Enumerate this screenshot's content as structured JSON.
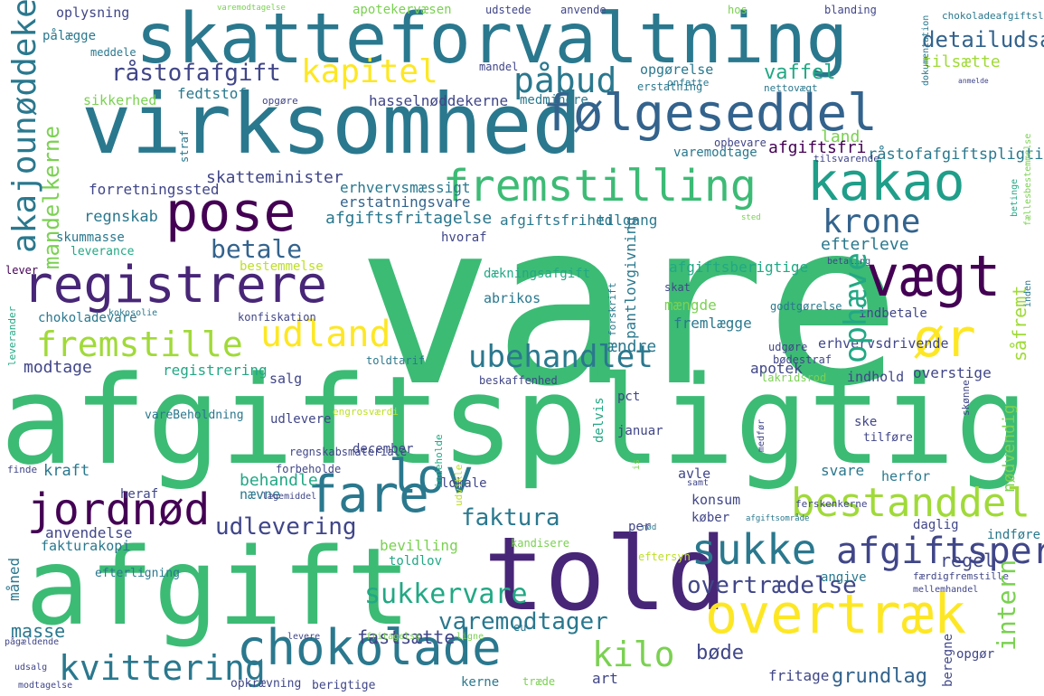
{
  "words": [
    {
      "text": "vare",
      "color": "#3cbb75"
    },
    {
      "text": "afgiftspligtig",
      "color": "#3cbb75"
    },
    {
      "text": "virksomhed",
      "color": "#2a788e"
    },
    {
      "text": "skatteforvaltning",
      "color": "#2a788e"
    },
    {
      "text": "afgift",
      "color": "#3cbb75"
    },
    {
      "text": "told",
      "color": "#482677"
    },
    {
      "text": "følgeseddel",
      "color": "#33638d"
    },
    {
      "text": "pose",
      "color": "#440154"
    },
    {
      "text": "kakao",
      "color": "#1f9e89"
    },
    {
      "text": "fremstilling",
      "color": "#3cbb75"
    },
    {
      "text": "registrere",
      "color": "#482677"
    },
    {
      "text": "vægt",
      "color": "#440154"
    },
    {
      "text": "chokolade",
      "color": "#2a788e"
    },
    {
      "text": "overtræk",
      "color": "#fde725"
    },
    {
      "text": "fare",
      "color": "#2a788e"
    },
    {
      "text": "jordnød",
      "color": "#440154"
    },
    {
      "text": "lov",
      "color": "#2a788e"
    },
    {
      "text": "bestanddel",
      "color": "#a0da39"
    },
    {
      "text": "sukke",
      "color": "#2a788e"
    },
    {
      "text": "ør",
      "color": "#fde725"
    },
    {
      "text": "udland",
      "color": "#fde725"
    },
    {
      "text": "fremstille",
      "color": "#a0da39"
    },
    {
      "text": "kapitel",
      "color": "#fde725"
    },
    {
      "text": "påbud",
      "color": "#2a788e"
    },
    {
      "text": "ubehandlet",
      "color": "#2a788e"
    },
    {
      "text": "krone",
      "color": "#2a788e"
    },
    {
      "text": "kilo",
      "color": "#22a884"
    },
    {
      "text": "kvittering",
      "color": "#33638d"
    },
    {
      "text": "afgiftsperiode",
      "color": "#7ad151"
    },
    {
      "text": "faktura",
      "color": "#2a788e"
    },
    {
      "text": "betale",
      "color": "#404688"
    },
    {
      "text": "råstofafgift",
      "color": "#2a788e"
    },
    {
      "text": "udlevering",
      "color": "#33638d"
    },
    {
      "text": "sukkervare",
      "color": "#404688"
    },
    {
      "text": "varemodtager",
      "color": "#7ad151"
    },
    {
      "text": "overtrædelse",
      "color": "#404688"
    },
    {
      "text": "vaffel",
      "color": "#22a884"
    },
    {
      "text": "detailudsalg",
      "color": "#2a788e"
    },
    {
      "text": "tilsætte",
      "color": "#404688"
    },
    {
      "text": "regel",
      "color": "#7ad151"
    },
    {
      "text": "fastsætte",
      "color": "#22a884"
    },
    {
      "text": "bøde",
      "color": "#33638d"
    },
    {
      "text": "grundlag",
      "color": "#a0da39"
    },
    {
      "text": "masse",
      "color": "#404688"
    },
    {
      "text": "anvendelse",
      "color": "#404688"
    },
    {
      "text": "land",
      "color": "#404688"
    },
    {
      "text": "råstofafgiftspligtig",
      "color": "#33638d"
    },
    {
      "text": "afgiftsfri",
      "color": "#a0da39"
    },
    {
      "text": "skatteminister",
      "color": "#7ad151"
    },
    {
      "text": "forretningssted",
      "color": "#2a788e"
    },
    {
      "text": "erstatningsvare",
      "color": "#2a788e"
    },
    {
      "text": "afgiftsfritagelse",
      "color": "#404688"
    },
    {
      "text": "erhvervsmæssigt",
      "color": "#7ad151"
    },
    {
      "text": "afgiftsfrihed",
      "color": "#2a788e"
    },
    {
      "text": "tilgang",
      "color": "#440154"
    },
    {
      "text": "efterleve",
      "color": "#404688"
    },
    {
      "text": "regnskab",
      "color": "#404688"
    },
    {
      "text": "skummasse",
      "color": "#33638d"
    },
    {
      "text": "leverance",
      "color": "#2a788e"
    },
    {
      "text": "lever",
      "color": "#2a788e"
    },
    {
      "text": "bestemmelse",
      "color": "#2a788e"
    },
    {
      "text": "dækningsafgift",
      "color": "#2a788e"
    },
    {
      "text": "afgiftsberigtige",
      "color": "#2a788e"
    },
    {
      "text": "mængde",
      "color": "#2a788e"
    },
    {
      "text": "fremlægge",
      "color": "#2a788e"
    },
    {
      "text": "indbetale",
      "color": "#22a884"
    },
    {
      "text": "ændre",
      "color": "#440154"
    },
    {
      "text": "erhvervsdrivende",
      "color": "#bddf26"
    },
    {
      "text": "godtgørelse",
      "color": "#22a884"
    },
    {
      "text": "apotek",
      "color": "#22a884"
    },
    {
      "text": "indhold",
      "color": "#7ad151"
    },
    {
      "text": "overstige",
      "color": "#2a788e"
    },
    {
      "text": "modtage",
      "color": "#404688"
    },
    {
      "text": "registrering",
      "color": "#2a788e"
    },
    {
      "text": "salg",
      "color": "#404688"
    },
    {
      "text": "udlevere",
      "color": "#2a788e"
    },
    {
      "text": "pct",
      "color": "#404688"
    },
    {
      "text": "januar",
      "color": "#404688"
    },
    {
      "text": "ske",
      "color": "#404688"
    },
    {
      "text": "tilføre",
      "color": "#404688"
    },
    {
      "text": "december",
      "color": "#22a884"
    },
    {
      "text": "kraft",
      "color": "#404688"
    },
    {
      "text": "finde",
      "color": "#404688"
    },
    {
      "text": "heraf",
      "color": "#404688"
    },
    {
      "text": "behandle",
      "color": "#404688"
    },
    {
      "text": "nævne",
      "color": "#404688"
    },
    {
      "text": "lokale",
      "color": "#404688"
    },
    {
      "text": "avle",
      "color": "#404688"
    },
    {
      "text": "svare",
      "color": "#22a884"
    },
    {
      "text": "herfor",
      "color": "#2a788e"
    },
    {
      "text": "konsum",
      "color": "#404688"
    },
    {
      "text": "køber",
      "color": "#404688"
    },
    {
      "text": "per",
      "color": "#22a884"
    },
    {
      "text": "daglig",
      "color": "#2a788e"
    },
    {
      "text": "indføre",
      "color": "#404688"
    },
    {
      "text": "bevilling",
      "color": "#404688"
    },
    {
      "text": "toldlov",
      "color": "#2a788e"
    },
    {
      "text": "angive",
      "color": "#2a788e"
    },
    {
      "text": "opgør",
      "color": "#404688"
    },
    {
      "text": "fritage",
      "color": "#404688"
    },
    {
      "text": "art",
      "color": "#404688"
    },
    {
      "text": "træde",
      "color": "#404688"
    },
    {
      "text": "kerne",
      "color": "#2a788e"
    },
    {
      "text": "berigtige",
      "color": "#7ad151"
    },
    {
      "text": "opkrævning",
      "color": "#22a884"
    },
    {
      "text": "fakturakopi",
      "color": "#2a788e"
    },
    {
      "text": "efterligning",
      "color": "#404688"
    },
    {
      "text": "oplysning",
      "color": "#404688"
    },
    {
      "text": "pålægge",
      "color": "#404688"
    },
    {
      "text": "meddele",
      "color": "#404688"
    },
    {
      "text": "sikkerhed",
      "color": "#7ad151"
    },
    {
      "text": "fedtstof",
      "color": "#2a788e"
    },
    {
      "text": "hasselnøddekerne",
      "color": "#404688"
    },
    {
      "text": "medmindre",
      "color": "#404688"
    },
    {
      "text": "opgøre",
      "color": "#2a788e"
    },
    {
      "text": "mandel",
      "color": "#2a788e"
    },
    {
      "text": "opgørelse",
      "color": "#404688"
    },
    {
      "text": "erstatning",
      "color": "#2a788e"
    },
    {
      "text": "onfatte",
      "color": "#2a788e"
    },
    {
      "text": "nettovægt",
      "color": "#7ad151"
    },
    {
      "text": "opbevare",
      "color": "#2a788e"
    },
    {
      "text": "tilsvarende",
      "color": "#404688"
    },
    {
      "text": "varemodtage",
      "color": "#2a788e"
    },
    {
      "text": "apotekervæsen",
      "color": "#404688"
    },
    {
      "text": "udstede",
      "color": "#404688"
    },
    {
      "text": "anvende",
      "color": "#2a788e"
    },
    {
      "text": "hos",
      "color": "#2a788e"
    },
    {
      "text": "blanding",
      "color": "#2a788e"
    },
    {
      "text": "chokoladeafgiftslov",
      "color": "#2a788e"
    },
    {
      "text": "hvoraf",
      "color": "#404688"
    },
    {
      "text": "abrikos",
      "color": "#404688"
    },
    {
      "text": "skat",
      "color": "#2a788e"
    },
    {
      "text": "udgøre",
      "color": "#2a788e"
    },
    {
      "text": "bødestraf",
      "color": "#7ad151"
    },
    {
      "text": "lakridsrod",
      "color": "#404688"
    },
    {
      "text": "beskaffenhed",
      "color": "#404688"
    },
    {
      "text": "toldtarif",
      "color": "#7ad151"
    },
    {
      "text": "konfiskation",
      "color": "#404688"
    },
    {
      "text": "chokoladevare",
      "color": "#2a788e"
    },
    {
      "text": "kokosolie",
      "color": "#2a788e"
    },
    {
      "text": "vareBeholdning",
      "color": "#404688"
    },
    {
      "text": "forbeholde",
      "color": "#22a884"
    },
    {
      "text": "lægemiddel",
      "color": "#7ad151"
    },
    {
      "text": "samt",
      "color": "#404688"
    },
    {
      "text": "eu",
      "color": "#2a788e"
    },
    {
      "text": "ligne",
      "color": "#2a788e"
    },
    {
      "text": "fritagelse",
      "color": "#2a788e"
    },
    {
      "text": "levere",
      "color": "#404688"
    },
    {
      "text": "pågældende",
      "color": "#404688"
    },
    {
      "text": "udsalg",
      "color": "#404688"
    },
    {
      "text": "modtagelse",
      "color": "#7ad151"
    },
    {
      "text": "engrosværdi",
      "color": "#404688"
    },
    {
      "text": "varemodtagelse",
      "color": "#2a788e"
    },
    {
      "text": "betaling",
      "color": "#404688"
    },
    {
      "text": "sted",
      "color": "#2a788e"
    },
    {
      "text": "regnskabsmateriale",
      "color": "#2a788e"
    },
    {
      "text": "eftersyn",
      "color": "#22a884"
    },
    {
      "text": "nød",
      "color": "#2a788e"
    },
    {
      "text": "afgiftsområde",
      "color": "#22a884"
    },
    {
      "text": "færdigfremstille",
      "color": "#bddf26"
    },
    {
      "text": "mellemhandel",
      "color": "#7ad151"
    },
    {
      "text": "ferskenkerne",
      "color": "#404688"
    },
    {
      "text": "kandisere",
      "color": "#404688"
    },
    {
      "text": "akajounøddekerne",
      "color": "#404688"
    },
    {
      "text": "mandelkerne",
      "color": "#7ad151"
    },
    {
      "text": "ophæve",
      "color": "#404688"
    },
    {
      "text": "intern",
      "color": "#404688"
    },
    {
      "text": "såfremt",
      "color": "#404688"
    },
    {
      "text": "nødvendig",
      "color": "#404688"
    },
    {
      "text": "måned",
      "color": "#404688"
    },
    {
      "text": "beregne",
      "color": "#2a788e"
    },
    {
      "text": "pantlovgivning",
      "color": "#7ad151"
    },
    {
      "text": "forskrift",
      "color": "#7ad151"
    },
    {
      "text": "straf",
      "color": "#404688"
    },
    {
      "text": "dokumentation",
      "color": "#404688"
    },
    {
      "text": "betinge",
      "color": "#404688"
    },
    {
      "text": "fællesbestemmelse",
      "color": "#404688"
    },
    {
      "text": "inden",
      "color": "#bddf26"
    },
    {
      "text": "leverander",
      "color": "#7ad151"
    },
    {
      "text": "delvis",
      "color": "#404688"
    },
    {
      "text": "indeholde",
      "color": "#2a788e"
    },
    {
      "text": "udvikle",
      "color": "#7ad151"
    },
    {
      "text": "is",
      "color": "#404688"
    },
    {
      "text": "medfør",
      "color": "#bddf26"
    },
    {
      "text": "skønne",
      "color": "#2a788e"
    },
    {
      "text": "anmelde",
      "color": "#2a788e"
    }
  ]
}
